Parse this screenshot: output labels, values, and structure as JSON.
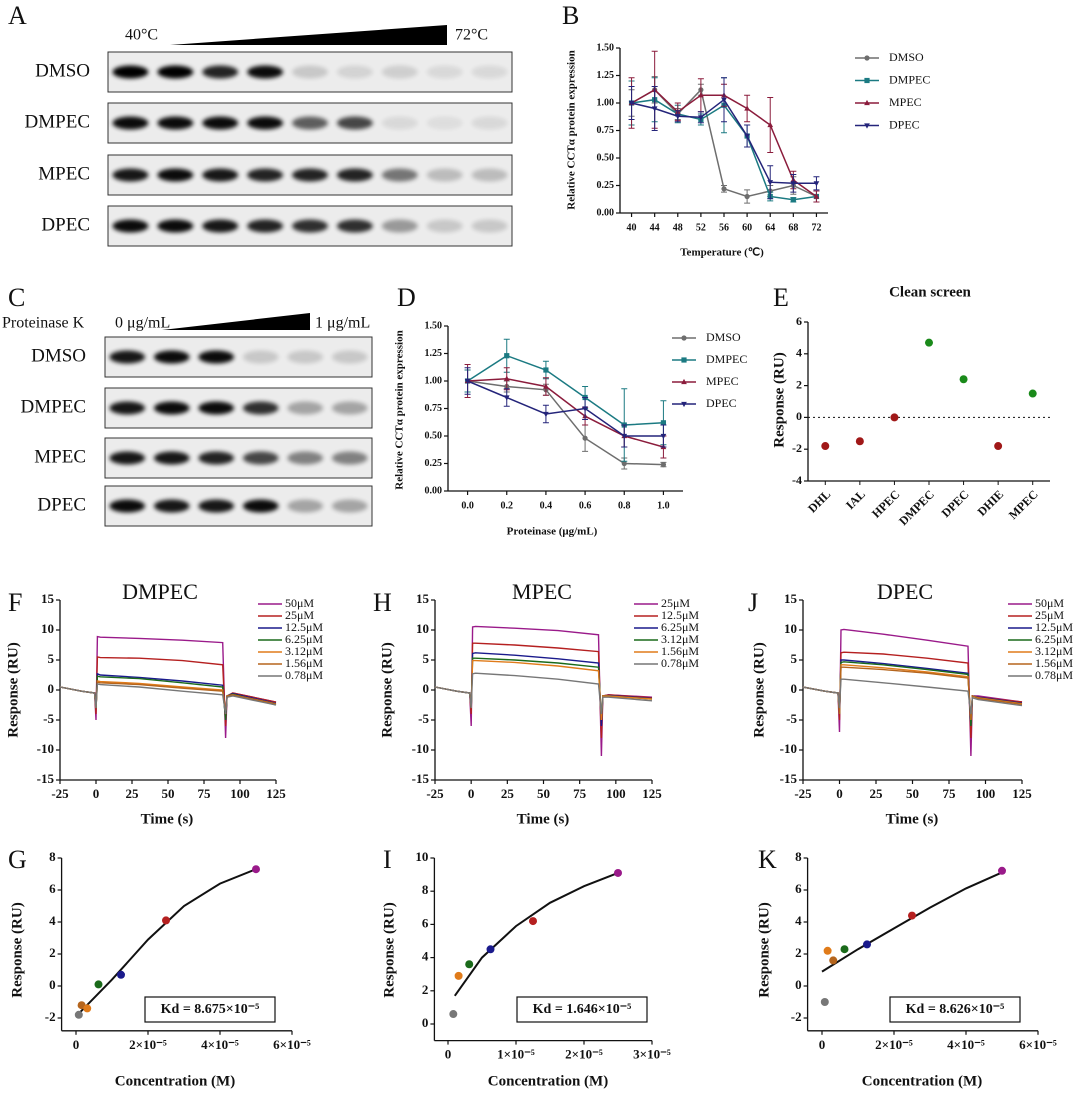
{
  "blots": [
    {
      "panel": "A",
      "rows": [
        "DMSO",
        "DMPEC",
        "MPEC",
        "DPEC"
      ],
      "start_label": "40°C",
      "end_label": "72°C"
    },
    {
      "panel": "C",
      "reagent": "Proteinase K",
      "rows": [
        "DMSO",
        "DMPEC",
        "MPEC",
        "DPEC"
      ],
      "start_label": "0 μg/mL",
      "end_label": "1 μg/mL"
    }
  ],
  "chart_data": [
    {
      "panel": "B",
      "type": "line",
      "x_label": "Temperature (℃)",
      "y_label": "Relative CCTα protein expression",
      "x": [
        40,
        44,
        48,
        52,
        56,
        60,
        64,
        68,
        72
      ],
      "xlim": [
        38,
        74
      ],
      "xticks": [
        40,
        44,
        48,
        52,
        56,
        60,
        64,
        68,
        72
      ],
      "ylim": [
        0,
        1.5
      ],
      "yticks": [
        {
          "value": 0,
          "label": "0.00"
        },
        {
          "value": 0.25,
          "label": "0.25"
        },
        {
          "value": 0.5,
          "label": "0.50"
        },
        {
          "value": 0.75,
          "label": "0.75"
        },
        {
          "value": 1,
          "label": "1.00"
        },
        {
          "value": 1.25,
          "label": "1.25"
        },
        {
          "value": 1.5,
          "label": "1.50"
        }
      ],
      "series": [
        {
          "name": "DMSO",
          "color": "#6e6e6e",
          "marker": "circle",
          "values": [
            1.0,
            1.12,
            0.9,
            1.12,
            0.22,
            0.15,
            0.2,
            0.25,
            0.15
          ],
          "errors": [
            0.12,
            0.12,
            0.05,
            0.05,
            0.03,
            0.06,
            0.05,
            0.08,
            0.05
          ]
        },
        {
          "name": "DMPEC",
          "color": "#1b7a82",
          "marker": "square",
          "values": [
            1.0,
            1.03,
            0.9,
            0.85,
            0.98,
            0.7,
            0.15,
            0.12,
            0.15
          ],
          "errors": [
            0.2,
            0.2,
            0.08,
            0.05,
            0.25,
            0.1,
            0.04,
            0.02,
            0.05
          ]
        },
        {
          "name": "MPEC",
          "color": "#8b1c3c",
          "marker": "triangle-up",
          "values": [
            1.0,
            1.12,
            0.92,
            1.07,
            1.07,
            0.95,
            0.8,
            0.3,
            0.15
          ],
          "errors": [
            0.23,
            0.35,
            0.08,
            0.15,
            0.1,
            0.12,
            0.25,
            0.08,
            0.05
          ]
        },
        {
          "name": "DPEC",
          "color": "#24247a",
          "marker": "triangle-down",
          "values": [
            1.0,
            0.95,
            0.88,
            0.87,
            1.03,
            0.7,
            0.28,
            0.27,
            0.27
          ],
          "errors": [
            0.15,
            0.2,
            0.05,
            0.05,
            0.2,
            0.1,
            0.15,
            0.08,
            0.06
          ]
        }
      ]
    },
    {
      "panel": "D",
      "type": "line",
      "x_label": "Proteinase (μg/mL)",
      "y_label": "Relative CCTα protein expression",
      "x": [
        0,
        0.2,
        0.4,
        0.6,
        0.8,
        1.0
      ],
      "xlim": [
        -0.1,
        1.1
      ],
      "xticks": [
        {
          "value": 0,
          "label": "0.0"
        },
        {
          "value": 0.2,
          "label": "0.2"
        },
        {
          "value": 0.4,
          "label": "0.4"
        },
        {
          "value": 0.6,
          "label": "0.6"
        },
        {
          "value": 0.8,
          "label": "0.8"
        },
        {
          "value": 1,
          "label": "1.0"
        }
      ],
      "ylim": [
        0,
        1.5
      ],
      "yticks": [
        {
          "value": 0,
          "label": "0.00"
        },
        {
          "value": 0.25,
          "label": "0.25"
        },
        {
          "value": 0.5,
          "label": "0.50"
        },
        {
          "value": 0.75,
          "label": "0.75"
        },
        {
          "value": 1,
          "label": "1.00"
        },
        {
          "value": 1.25,
          "label": "1.25"
        },
        {
          "value": 1.5,
          "label": "1.50"
        }
      ],
      "series": [
        {
          "name": "DMSO",
          "color": "#6e6e6e",
          "marker": "circle",
          "values": [
            1.0,
            0.95,
            0.92,
            0.48,
            0.25,
            0.24
          ],
          "errors": [
            0.1,
            0.05,
            0.05,
            0.12,
            0.05,
            0.02
          ]
        },
        {
          "name": "DMPEC",
          "color": "#1b7a82",
          "marker": "square",
          "values": [
            1.0,
            1.23,
            1.1,
            0.85,
            0.6,
            0.62
          ],
          "errors": [
            0.1,
            0.15,
            0.08,
            0.1,
            0.33,
            0.2
          ]
        },
        {
          "name": "MPEC",
          "color": "#8b1c3c",
          "marker": "triangle-up",
          "values": [
            1.0,
            1.02,
            0.95,
            0.68,
            0.5,
            0.4
          ],
          "errors": [
            0.15,
            0.1,
            0.08,
            0.08,
            0.1,
            0.1
          ]
        },
        {
          "name": "DPEC",
          "color": "#24247a",
          "marker": "triangle-down",
          "values": [
            1.0,
            0.85,
            0.7,
            0.75,
            0.5,
            0.5
          ],
          "errors": [
            0.12,
            0.08,
            0.08,
            0.1,
            0.1,
            0.1
          ]
        }
      ]
    },
    {
      "panel": "E",
      "type": "scatter",
      "title": "Clean screen",
      "y_label": "Response (RU)",
      "categories": [
        "DHL",
        "IAL",
        "HPEC",
        "DMPEC",
        "DPEC",
        "DHIE",
        "MPEC"
      ],
      "values": [
        -1.8,
        -1.5,
        0,
        4.7,
        2.4,
        -1.8,
        1.5
      ],
      "colors": [
        "#a01818",
        "#a01818",
        "#a01818",
        "#1a8a1a",
        "#1a8a1a",
        "#a01818",
        "#1a8a1a"
      ],
      "ylim": [
        -4,
        6
      ],
      "yticks": [
        -4,
        -2,
        0,
        2,
        4,
        6
      ],
      "hline": 0
    },
    {
      "panel": "F",
      "type": "line",
      "title": "DMPEC",
      "x_label": "Time (s)",
      "y_label": "Response (RU)",
      "x": [
        -25,
        -10,
        -1,
        0,
        1,
        3,
        30,
        60,
        88,
        90,
        91,
        95,
        125
      ],
      "xlim": [
        -25,
        125
      ],
      "xticks": [
        -25,
        0,
        25,
        50,
        75,
        100,
        125
      ],
      "ylim": [
        -15,
        15
      ],
      "yticks": [
        -15,
        -10,
        -5,
        0,
        5,
        10,
        15
      ],
      "series": [
        {
          "name": "50μM",
          "color": "#9a1a8a",
          "values": [
            0.5,
            -0.2,
            -0.5,
            -5,
            8.9,
            8.8,
            8.6,
            8.3,
            7.9,
            -8,
            -1,
            -0.5,
            -2
          ]
        },
        {
          "name": "25μM",
          "color": "#b52020",
          "values": [
            0.5,
            -0.2,
            -0.5,
            -4,
            5.5,
            5.4,
            5.3,
            4.9,
            4.2,
            -6,
            -1,
            -0.5,
            -2
          ]
        },
        {
          "name": "12.5μM",
          "color": "#1a1a8c",
          "values": [
            0.5,
            -0.2,
            -0.5,
            -3,
            2.7,
            2.5,
            2.1,
            1.5,
            0.8,
            -5,
            -1,
            -0.6,
            -2.2
          ]
        },
        {
          "name": "6.25μM",
          "color": "#1a6a1a",
          "values": [
            0.5,
            -0.2,
            -0.5,
            -3,
            2.3,
            2.2,
            1.9,
            1.2,
            0.5,
            -5,
            -1,
            -0.7,
            -2.5
          ]
        },
        {
          "name": "3.12μM",
          "color": "#e07b1a",
          "values": [
            0.5,
            -0.2,
            -0.5,
            -3,
            1.5,
            1.4,
            1.1,
            0.5,
            0,
            -4,
            -1,
            -0.8,
            -2.3
          ]
        },
        {
          "name": "1.56μM",
          "color": "#b5651d",
          "values": [
            0.5,
            -0.2,
            -0.5,
            -3,
            1.3,
            1.2,
            0.9,
            0.3,
            -0.2,
            -4,
            -1,
            -0.8,
            -2.3
          ]
        },
        {
          "name": "0.78μM",
          "color": "#777777",
          "values": [
            0.5,
            -0.2,
            -0.5,
            -3,
            1,
            0.9,
            0.5,
            -0.2,
            -0.8,
            -4,
            -1.2,
            -1,
            -2.5
          ]
        }
      ]
    },
    {
      "panel": "H",
      "type": "line",
      "title": "MPEC",
      "x_label": "Time (s)",
      "y_label": "Response (RU)",
      "x": [
        -25,
        -10,
        -1,
        0,
        1,
        3,
        30,
        60,
        88,
        90,
        91,
        95,
        125
      ],
      "xlim": [
        -25,
        125
      ],
      "xticks": [
        -25,
        0,
        25,
        50,
        75,
        100,
        125
      ],
      "ylim": [
        -15,
        15
      ],
      "yticks": [
        -15,
        -10,
        -5,
        0,
        5,
        10,
        15
      ],
      "series": [
        {
          "name": "25μM",
          "color": "#9a1a8a",
          "values": [
            0.5,
            -0.2,
            -0.5,
            -6,
            10.5,
            10.6,
            10.3,
            9.9,
            9.2,
            -11,
            -1,
            -0.8,
            -1.2
          ]
        },
        {
          "name": "12.5μM",
          "color": "#b52020",
          "values": [
            0.5,
            -0.2,
            -0.5,
            -4,
            7.8,
            7.8,
            7.5,
            7,
            6.4,
            -8,
            -1,
            -0.8,
            -1.3
          ]
        },
        {
          "name": "6.25μM",
          "color": "#1a1a8c",
          "values": [
            0.5,
            -0.2,
            -0.5,
            -3,
            6.1,
            6.2,
            5.8,
            5.2,
            4.5,
            -6,
            -1,
            -0.9,
            -1.4
          ]
        },
        {
          "name": "3.12μM",
          "color": "#1a6a1a",
          "values": [
            0.5,
            -0.2,
            -0.5,
            -3,
            5.3,
            5.3,
            5,
            4.5,
            3.8,
            -5,
            -1,
            -1,
            -1.5
          ]
        },
        {
          "name": "1.56μM",
          "color": "#e07b1a",
          "values": [
            0.5,
            -0.2,
            -0.5,
            -3,
            4.9,
            4.9,
            4.6,
            4,
            3.2,
            -5,
            -1,
            -1,
            -1.5
          ]
        },
        {
          "name": "0.78μM",
          "color": "#777777",
          "values": [
            0.5,
            -0.2,
            -0.5,
            -3,
            2.7,
            2.8,
            2.4,
            1.8,
            1,
            -4,
            -1.2,
            -1.2,
            -1.8
          ]
        }
      ]
    },
    {
      "panel": "J",
      "type": "line",
      "title": "DPEC",
      "x_label": "Time (s)",
      "y_label": "Response (RU)",
      "x": [
        -25,
        -10,
        -1,
        0,
        1,
        3,
        30,
        60,
        88,
        90,
        91,
        95,
        125
      ],
      "xlim": [
        -25,
        125
      ],
      "xticks": [
        -25,
        0,
        25,
        50,
        75,
        100,
        125
      ],
      "ylim": [
        -15,
        15
      ],
      "yticks": [
        -15,
        -10,
        -5,
        0,
        5,
        10,
        15
      ],
      "series": [
        {
          "name": "50μM",
          "color": "#9a1a8a",
          "values": [
            0.5,
            -0.2,
            -0.5,
            -7,
            10,
            10.1,
            9.3,
            8.3,
            7.3,
            -11,
            -1,
            -1,
            -2
          ]
        },
        {
          "name": "25μM",
          "color": "#b52020",
          "values": [
            0.5,
            -0.2,
            -0.5,
            -5,
            6.2,
            6.3,
            6,
            5.3,
            4.5,
            -8,
            -1,
            -1.2,
            -2
          ]
        },
        {
          "name": "12.5μM",
          "color": "#1a1a8c",
          "values": [
            0.5,
            -0.2,
            -0.5,
            -4,
            5,
            5,
            4.4,
            3.6,
            2.8,
            -6,
            -1,
            -1.2,
            -2.2
          ]
        },
        {
          "name": "6.25μM",
          "color": "#1a6a1a",
          "values": [
            0.5,
            -0.2,
            -0.5,
            -4,
            4.6,
            4.7,
            4.2,
            3.4,
            2.6,
            -6,
            -1,
            -1.3,
            -2.3
          ]
        },
        {
          "name": "3.12μM",
          "color": "#e07b1a",
          "values": [
            0.5,
            -0.2,
            -0.5,
            -4,
            4.2,
            4.2,
            3.7,
            3,
            2.2,
            -5,
            -1,
            -1.3,
            -2.3
          ]
        },
        {
          "name": "1.56μM",
          "color": "#b5651d",
          "values": [
            0.5,
            -0.2,
            -0.5,
            -4,
            3.8,
            3.8,
            3.4,
            2.8,
            2,
            -5,
            -1,
            -1.4,
            -2.4
          ]
        },
        {
          "name": "0.78μM",
          "color": "#777777",
          "values": [
            0.5,
            -0.2,
            -0.5,
            -3,
            1.8,
            1.8,
            1.2,
            0.5,
            -0.2,
            -4,
            -1.3,
            -1.6,
            -2.6
          ]
        }
      ]
    },
    {
      "panel": "G",
      "type": "scatter",
      "x_label": "Concentration (M)",
      "y_label": "Response (RU)",
      "x": [
        7.8e-07,
        1.56e-06,
        3.12e-06,
        6.25e-06,
        1.25e-05,
        2.5e-05,
        5e-05
      ],
      "values": [
        -1.8,
        -1.2,
        -1.4,
        0.1,
        0.7,
        4.1,
        7.3
      ],
      "colors": [
        "#777777",
        "#b5651d",
        "#e07b1a",
        "#1a6a1a",
        "#1a1a8c",
        "#b52020",
        "#9a1a8a"
      ],
      "fit": {
        "x": [
          0,
          1e-05,
          2e-05,
          3e-05,
          4e-05,
          5e-05
        ],
        "y": [
          -1.9,
          0.4,
          2.9,
          5,
          6.4,
          7.3
        ],
        "color": "#111111"
      },
      "xlim": [
        -4e-06,
        6e-05
      ],
      "xticks": [
        0,
        {
          "value": 2e-05,
          "label": "2×10⁻⁵"
        },
        {
          "value": 4e-05,
          "label": "4×10⁻⁵"
        },
        {
          "value": 6e-05,
          "label": "6×10⁻⁵"
        }
      ],
      "ylim": [
        -2.8,
        8
      ],
      "yticks": [
        -2,
        0,
        2,
        4,
        6,
        8
      ],
      "annotation": "Kd = 8.675×10⁻⁵"
    },
    {
      "panel": "I",
      "type": "scatter",
      "x_label": "Concentration (M)",
      "y_label": "Response (RU)",
      "x": [
        7.8e-07,
        1.56e-06,
        3.12e-06,
        6.25e-06,
        1.25e-05,
        2.5e-05
      ],
      "values": [
        0.6,
        2.9,
        3.6,
        4.5,
        6.2,
        9.1
      ],
      "colors": [
        "#777777",
        "#e07b1a",
        "#1a6a1a",
        "#1a1a8c",
        "#b52020",
        "#9a1a8a"
      ],
      "fit": {
        "x": [
          1e-06,
          5e-06,
          1e-05,
          1.5e-05,
          2e-05,
          2.5e-05
        ],
        "y": [
          1.7,
          4,
          5.9,
          7.3,
          8.3,
          9.1
        ],
        "color": "#111111"
      },
      "xlim": [
        -2e-06,
        3e-05
      ],
      "xticks": [
        0,
        {
          "value": 1e-05,
          "label": "1×10⁻⁵"
        },
        {
          "value": 2e-05,
          "label": "2×10⁻⁵"
        },
        {
          "value": 3e-05,
          "label": "3×10⁻⁵"
        }
      ],
      "ylim": [
        -1,
        10
      ],
      "yticks": [
        0,
        2,
        4,
        6,
        8,
        10
      ],
      "annotation": "Kd = 1.646×10⁻⁵"
    },
    {
      "panel": "K",
      "type": "scatter",
      "x_label": "Concentration (M)",
      "y_label": "Response (RU)",
      "x": [
        7.8e-07,
        1.56e-06,
        3.12e-06,
        6.25e-06,
        1.25e-05,
        2.5e-05,
        5e-05
      ],
      "values": [
        -1,
        2.2,
        1.6,
        2.3,
        2.6,
        4.4,
        7.2
      ],
      "colors": [
        "#777777",
        "#e07b1a",
        "#b5651d",
        "#1a6a1a",
        "#1a1a8c",
        "#b52020",
        "#9a1a8a"
      ],
      "fit": {
        "x": [
          0,
          1e-05,
          2e-05,
          3e-05,
          4e-05,
          5e-05
        ],
        "y": [
          0.9,
          2.3,
          3.6,
          4.9,
          6.1,
          7.1
        ],
        "color": "#111111"
      },
      "xlim": [
        -4e-06,
        6e-05
      ],
      "xticks": [
        0,
        {
          "value": 2e-05,
          "label": "2×10⁻⁵"
        },
        {
          "value": 4e-05,
          "label": "4×10⁻⁵"
        },
        {
          "value": 6e-05,
          "label": "6×10⁻⁵"
        }
      ],
      "ylim": [
        -2.8,
        8
      ],
      "yticks": [
        -2,
        0,
        2,
        4,
        6,
        8
      ],
      "annotation": "Kd = 8.626×10⁻⁵"
    }
  ]
}
